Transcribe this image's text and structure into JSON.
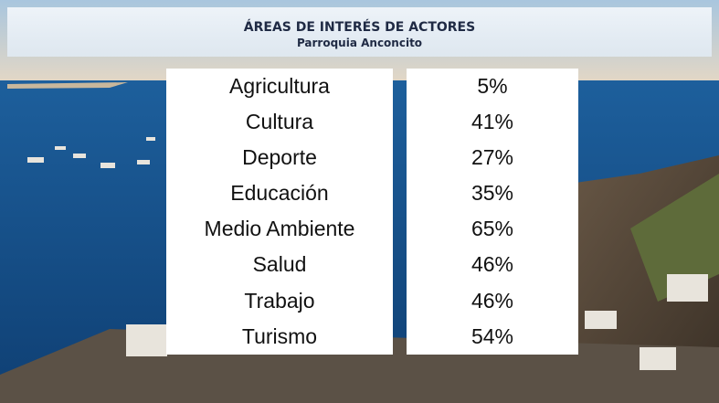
{
  "header": {
    "title": "ÁREAS DE INTERÉS DE ACTORES",
    "subtitle": "Parroquia Anconcito"
  },
  "table": {
    "rows": [
      [
        "Agricultura",
        "5%"
      ],
      [
        "Cultura",
        "41%"
      ],
      [
        "Deporte",
        "27%"
      ],
      [
        "Educación",
        "35%"
      ],
      [
        "Medio Ambiente",
        "65%"
      ],
      [
        "Salud",
        "46%"
      ],
      [
        "Trabajo",
        "46%"
      ],
      [
        "Turismo",
        "54%"
      ]
    ]
  }
}
